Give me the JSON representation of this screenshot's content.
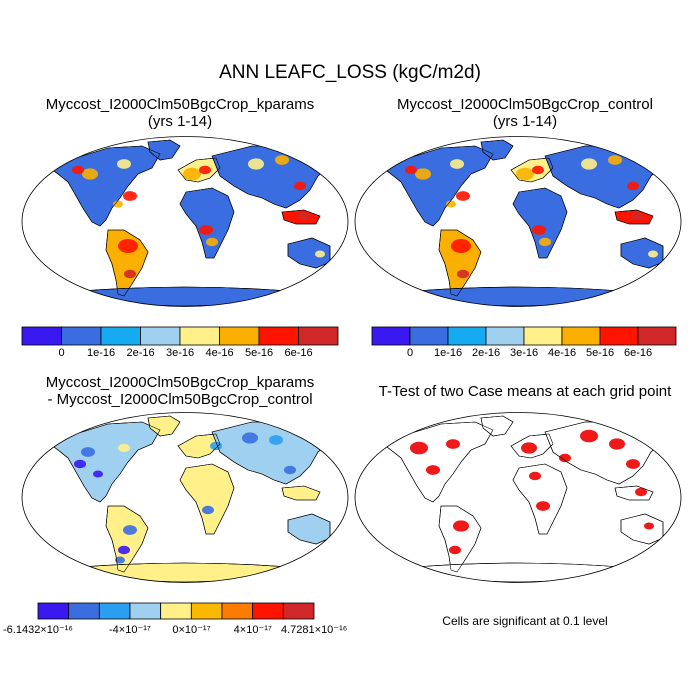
{
  "figure": {
    "title": "ANN LEAFC_LOSS (kgC/m2d)"
  },
  "panels": [
    {
      "id": "kparams",
      "title_line1": "Myccost_I2000Clm50BgcCrop_kparams",
      "title_line2": "(yrs 1-14)"
    },
    {
      "id": "control",
      "title_line1": "Myccost_I2000Clm50BgcCrop_control",
      "title_line2": "(yrs 1-14)"
    },
    {
      "id": "difference",
      "title_line1": "Myccost_I2000Clm50BgcCrop_kparams",
      "title_line2": "- Myccost_I2000Clm50BgcCrop_control"
    },
    {
      "id": "ttest",
      "title_line1": "T-Test of two Case means at each grid point",
      "footnote": "Cells are significant at 0.1 level"
    }
  ],
  "colorbars": {
    "absolute": {
      "colors": [
        "#3a18f0",
        "#3a6ee0",
        "#16aaf0",
        "#a0d0f0",
        "#fff08a",
        "#fbb000",
        "#ff1400",
        "#d02828"
      ],
      "tick_labels": [
        "0",
        "1e-16",
        "2e-16",
        "3e-16",
        "4e-16",
        "5e-16",
        "6e-16"
      ]
    },
    "difference": {
      "colors": [
        "#3a18f0",
        "#3a6ee0",
        "#2a9ef0",
        "#a0d0f0",
        "#fff08a",
        "#fbb800",
        "#fb7c00",
        "#ff1400",
        "#d02828"
      ],
      "tick_labels": [
        "-6.1432×10⁻¹⁶",
        "-4×10⁻¹⁷",
        "0×10⁻¹⁷",
        "4×10⁻¹⁷",
        "4.7281×10⁻¹⁶"
      ]
    }
  },
  "colors": {
    "ocean": "#ffffff",
    "antarctica_abs": "#3a6ee0",
    "antarctica_diff": "#fff08a",
    "significant": "#ee0000"
  }
}
